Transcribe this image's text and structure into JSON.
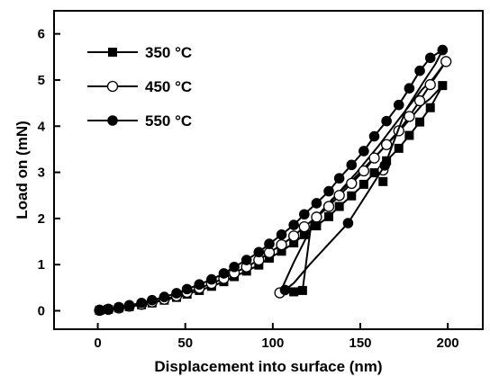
{
  "chart_data": {
    "type": "line",
    "xlabel": "Displacement into surface (nm)",
    "ylabel": "Load on (mN)",
    "xlim": [
      -25,
      220
    ],
    "ylim": [
      -0.4,
      6.5
    ],
    "xticks": [
      0,
      50,
      100,
      150,
      200
    ],
    "yticks": [
      0,
      1,
      2,
      3,
      4,
      5,
      6
    ],
    "grid": false,
    "legend_position": "top-left",
    "series": [
      {
        "name": "350 °C",
        "marker": "square",
        "color": "#000000",
        "loading": {
          "x": [
            1,
            6,
            12,
            18,
            25,
            31,
            38,
            45,
            51,
            58,
            65,
            72,
            78,
            85,
            92,
            98,
            105,
            112,
            118,
            125,
            132,
            138,
            145,
            152,
            158,
            165,
            172,
            178,
            184,
            190,
            197
          ],
          "y": [
            0.01,
            0.03,
            0.06,
            0.09,
            0.13,
            0.17,
            0.23,
            0.29,
            0.36,
            0.44,
            0.53,
            0.63,
            0.74,
            0.86,
            0.99,
            1.14,
            1.29,
            1.47,
            1.65,
            1.84,
            2.04,
            2.26,
            2.49,
            2.74,
            2.99,
            3.25,
            3.52,
            3.8,
            4.09,
            4.4,
            4.88
          ]
        },
        "unloading": {
          "x": [
            197,
            190,
            185,
            172,
            158,
            146,
            134,
            122,
            117,
            112
          ],
          "y": [
            4.88,
            4.6,
            4.45,
            3.87,
            3.32,
            2.85,
            2.42,
            1.9,
            0.44,
            0.41
          ]
        },
        "markers": {
          "x": [
            1,
            6,
            12,
            18,
            25,
            31,
            38,
            45,
            51,
            58,
            65,
            72,
            78,
            85,
            92,
            98,
            105,
            112,
            118,
            125,
            132,
            138,
            145,
            152,
            158,
            165,
            172,
            178,
            184,
            190,
            197,
            163,
            117,
            112
          ],
          "y": [
            0.01,
            0.03,
            0.06,
            0.09,
            0.13,
            0.17,
            0.23,
            0.29,
            0.36,
            0.44,
            0.53,
            0.63,
            0.74,
            0.86,
            0.99,
            1.14,
            1.29,
            1.47,
            1.65,
            1.84,
            2.04,
            2.26,
            2.49,
            2.74,
            2.99,
            3.25,
            3.52,
            3.8,
            4.09,
            4.4,
            4.88,
            2.8,
            0.44,
            0.41
          ]
        }
      },
      {
        "name": "450 °C",
        "marker": "circle-open",
        "color": "#000000",
        "loading": {
          "x": [
            1,
            6,
            12,
            18,
            25,
            31,
            38,
            45,
            51,
            58,
            65,
            72,
            78,
            85,
            92,
            98,
            105,
            112,
            118,
            125,
            132,
            138,
            145,
            152,
            158,
            165,
            172,
            178,
            184,
            190,
            199
          ],
          "y": [
            0.01,
            0.03,
            0.06,
            0.1,
            0.14,
            0.19,
            0.25,
            0.32,
            0.4,
            0.49,
            0.59,
            0.7,
            0.82,
            0.95,
            1.1,
            1.26,
            1.43,
            1.62,
            1.82,
            2.03,
            2.26,
            2.5,
            2.76,
            3.03,
            3.31,
            3.6,
            3.9,
            4.21,
            4.55,
            4.9,
            5.4
          ]
        },
        "unloading": {
          "x": [
            199,
            192,
            185,
            172,
            160,
            148,
            136,
            124,
            112,
            106,
            104
          ],
          "y": [
            5.4,
            5.05,
            4.78,
            4.15,
            3.55,
            3.0,
            2.49,
            1.95,
            1.05,
            0.55,
            0.39
          ]
        },
        "markers": {
          "x": [
            1,
            6,
            12,
            18,
            25,
            31,
            38,
            45,
            51,
            58,
            65,
            72,
            78,
            85,
            92,
            98,
            105,
            112,
            118,
            125,
            132,
            138,
            145,
            152,
            158,
            165,
            172,
            178,
            184,
            190,
            199,
            163,
            104
          ],
          "y": [
            0.01,
            0.03,
            0.06,
            0.1,
            0.14,
            0.19,
            0.25,
            0.32,
            0.4,
            0.49,
            0.59,
            0.7,
            0.82,
            0.95,
            1.1,
            1.26,
            1.43,
            1.62,
            1.82,
            2.03,
            2.26,
            2.5,
            2.76,
            3.03,
            3.31,
            3.6,
            3.9,
            4.21,
            4.55,
            4.9,
            5.4,
            3.05,
            0.39
          ]
        }
      },
      {
        "name": "550 °C",
        "marker": "circle-filled",
        "color": "#000000",
        "loading": {
          "x": [
            1,
            6,
            12,
            18,
            25,
            31,
            38,
            45,
            51,
            58,
            65,
            72,
            78,
            85,
            92,
            98,
            105,
            112,
            118,
            125,
            132,
            138,
            145,
            152,
            158,
            165,
            172,
            178,
            184,
            190,
            197
          ],
          "y": [
            0.02,
            0.04,
            0.08,
            0.12,
            0.17,
            0.23,
            0.3,
            0.38,
            0.47,
            0.57,
            0.68,
            0.81,
            0.95,
            1.1,
            1.27,
            1.45,
            1.65,
            1.86,
            2.09,
            2.33,
            2.59,
            2.87,
            3.16,
            3.46,
            3.78,
            4.11,
            4.46,
            4.82,
            5.2,
            5.48,
            5.65
          ]
        },
        "unloading": {
          "x": [
            197,
            193,
            186,
            176,
            164,
            154,
            143,
            132,
            121,
            112,
            107
          ],
          "y": [
            5.65,
            5.35,
            4.95,
            4.35,
            3.15,
            2.55,
            1.9,
            1.45,
            1.0,
            0.6,
            0.45
          ]
        },
        "markers": {
          "x": [
            1,
            6,
            12,
            18,
            25,
            31,
            38,
            45,
            51,
            58,
            65,
            72,
            78,
            85,
            92,
            98,
            105,
            112,
            118,
            125,
            132,
            138,
            145,
            152,
            158,
            165,
            172,
            178,
            184,
            190,
            197,
            164,
            143,
            107
          ],
          "y": [
            0.02,
            0.04,
            0.08,
            0.12,
            0.17,
            0.23,
            0.3,
            0.38,
            0.47,
            0.57,
            0.68,
            0.81,
            0.95,
            1.1,
            1.27,
            1.45,
            1.65,
            1.86,
            2.09,
            2.33,
            2.59,
            2.87,
            3.16,
            3.46,
            3.78,
            4.11,
            4.46,
            4.82,
            5.2,
            5.48,
            5.65,
            3.15,
            1.9,
            0.45
          ]
        }
      }
    ]
  }
}
